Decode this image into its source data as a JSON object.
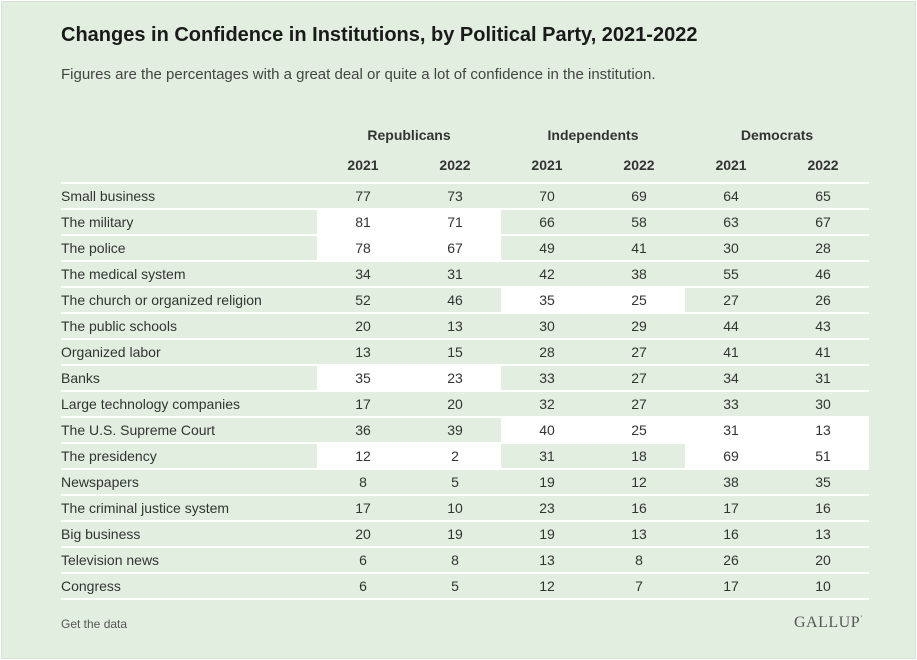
{
  "title": "Changes in Confidence in Institutions, by Political Party, 2021-2022",
  "subtitle": "Figures are the percentages with a great deal or quite a lot of confidence in the institution.",
  "footer": {
    "link_label": "Get the data",
    "logo": "GALLUP"
  },
  "colors": {
    "background": "#e2efe0",
    "highlight": "#ffffff",
    "text": "#333333"
  },
  "chart_data": {
    "type": "table",
    "parties": [
      "Republicans",
      "Independents",
      "Democrats"
    ],
    "years": [
      "2021",
      "2022"
    ],
    "rows": [
      {
        "label": "Small business",
        "values": [
          "77",
          "73",
          "70",
          "69",
          "64",
          "65"
        ],
        "highlight": [
          false,
          false,
          false
        ]
      },
      {
        "label": "The military",
        "values": [
          "81",
          "71",
          "66",
          "58",
          "63",
          "67"
        ],
        "highlight": [
          true,
          false,
          false
        ]
      },
      {
        "label": "The police",
        "values": [
          "78",
          "67",
          "49",
          "41",
          "30",
          "28"
        ],
        "highlight": [
          true,
          false,
          false
        ]
      },
      {
        "label": "The medical system",
        "values": [
          "34",
          "31",
          "42",
          "38",
          "55",
          "46"
        ],
        "highlight": [
          false,
          false,
          false
        ]
      },
      {
        "label": "The church or organized religion",
        "values": [
          "52",
          "46",
          "35",
          "25",
          "27",
          "26"
        ],
        "highlight": [
          false,
          true,
          false
        ]
      },
      {
        "label": "The public schools",
        "values": [
          "20",
          "13",
          "30",
          "29",
          "44",
          "43"
        ],
        "highlight": [
          false,
          false,
          false
        ]
      },
      {
        "label": "Organized labor",
        "values": [
          "13",
          "15",
          "28",
          "27",
          "41",
          "41"
        ],
        "highlight": [
          false,
          false,
          false
        ]
      },
      {
        "label": "Banks",
        "values": [
          "35",
          "23",
          "33",
          "27",
          "34",
          "31"
        ],
        "highlight": [
          true,
          false,
          false
        ]
      },
      {
        "label": "Large technology companies",
        "values": [
          "17",
          "20",
          "32",
          "27",
          "33",
          "30"
        ],
        "highlight": [
          false,
          false,
          false
        ]
      },
      {
        "label": "The U.S. Supreme Court",
        "values": [
          "36",
          "39",
          "40",
          "25",
          "31",
          "13"
        ],
        "highlight": [
          false,
          true,
          true
        ]
      },
      {
        "label": "The presidency",
        "values": [
          "12",
          "2",
          "31",
          "18",
          "69",
          "51"
        ],
        "highlight": [
          true,
          false,
          true
        ]
      },
      {
        "label": "Newspapers",
        "values": [
          "8",
          "5",
          "19",
          "12",
          "38",
          "35"
        ],
        "highlight": [
          false,
          false,
          false
        ]
      },
      {
        "label": "The criminal justice system",
        "values": [
          "17",
          "10",
          "23",
          "16",
          "17",
          "16"
        ],
        "highlight": [
          false,
          false,
          false
        ]
      },
      {
        "label": "Big business",
        "values": [
          "20",
          "19",
          "19",
          "13",
          "16",
          "13"
        ],
        "highlight": [
          false,
          false,
          false
        ]
      },
      {
        "label": "Television news",
        "values": [
          "6",
          "8",
          "13",
          "8",
          "26",
          "20"
        ],
        "highlight": [
          false,
          false,
          false
        ]
      },
      {
        "label": "Congress",
        "values": [
          "6",
          "5",
          "12",
          "7",
          "17",
          "10"
        ],
        "highlight": [
          false,
          false,
          false
        ]
      }
    ]
  }
}
